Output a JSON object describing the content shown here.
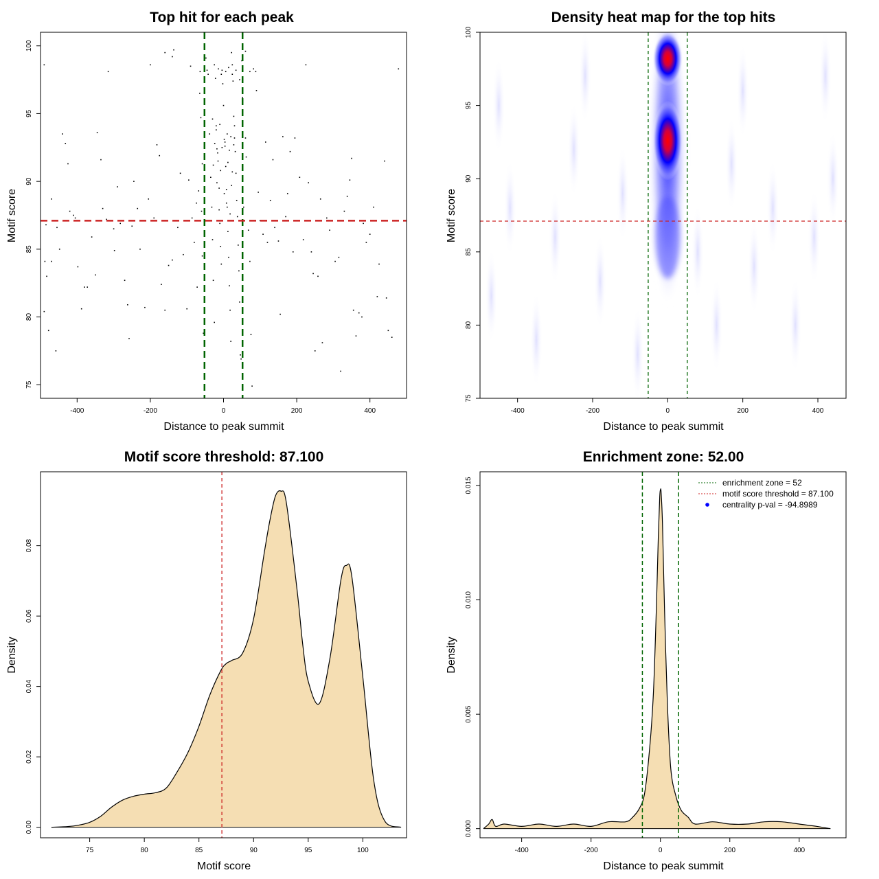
{
  "chart_data": [
    {
      "type": "scatter",
      "title": "Top hit for each peak",
      "xlabel": "Distance to peak summit",
      "ylabel": "Motif score",
      "xlim": [
        -500,
        500
      ],
      "ylim": [
        74,
        101
      ],
      "xticks": [
        -400,
        -200,
        0,
        200,
        400
      ],
      "yticks": [
        75,
        80,
        85,
        90,
        95,
        100
      ],
      "hline": {
        "y": 87.1,
        "color": "#cc2222"
      },
      "vlines": [
        {
          "x": -52,
          "color": "#006400"
        },
        {
          "x": 52,
          "color": "#006400"
        }
      ],
      "points": [
        [
          -490,
          98.6
        ],
        [
          -485,
          86.8
        ],
        [
          -488,
          84.1
        ],
        [
          -483,
          83
        ],
        [
          -490,
          80.4
        ],
        [
          -478,
          79
        ],
        [
          -458,
          77.5
        ],
        [
          -470,
          88.7
        ],
        [
          -448,
          85
        ],
        [
          -455,
          86.6
        ],
        [
          -440,
          93.5
        ],
        [
          -432,
          92.8
        ],
        [
          -425,
          91.3
        ],
        [
          -420,
          87.8
        ],
        [
          -410,
          87.5
        ],
        [
          -405,
          87.3
        ],
        [
          -398,
          83.7
        ],
        [
          -388,
          80.6
        ],
        [
          -380,
          82.2
        ],
        [
          -372,
          82.2
        ],
        [
          -360,
          85.9
        ],
        [
          -350,
          83.1
        ],
        [
          -345,
          93.6
        ],
        [
          -335,
          91.6
        ],
        [
          -320,
          87.2
        ],
        [
          -315,
          98.1
        ],
        [
          -300,
          86.5
        ],
        [
          -298,
          84.9
        ],
        [
          -290,
          89.6
        ],
        [
          -282,
          86.9
        ],
        [
          -270,
          82.7
        ],
        [
          -262,
          80.9
        ],
        [
          -258,
          78.4
        ],
        [
          -245,
          90
        ],
        [
          -235,
          88
        ],
        [
          -228,
          85
        ],
        [
          -215,
          80.7
        ],
        [
          -205,
          88.7
        ],
        [
          -200,
          98.6
        ],
        [
          -190,
          87.3
        ],
        [
          -182,
          92.7
        ],
        [
          -175,
          91.9
        ],
        [
          -170,
          82.4
        ],
        [
          -160,
          80.5
        ],
        [
          -150,
          83.8
        ],
        [
          -140,
          84.2
        ],
        [
          -136,
          99.7
        ],
        [
          -125,
          86.6
        ],
        [
          -118,
          90.6
        ],
        [
          -110,
          84.6
        ],
        [
          -100,
          80.6
        ],
        [
          -95,
          90.1
        ],
        [
          -86,
          87.3
        ],
        [
          -80,
          85.5
        ],
        [
          -72,
          82.2
        ],
        [
          -65,
          96.5
        ],
        [
          -60,
          87.8
        ],
        [
          -58,
          84.5
        ],
        [
          -55,
          78.8
        ],
        [
          -140,
          99.2
        ],
        [
          -48,
          99.1
        ],
        [
          -45,
          98.2
        ],
        [
          -42,
          97.9
        ],
        [
          -38,
          93.5
        ],
        [
          -35,
          90.3
        ],
        [
          -32,
          88.1
        ],
        [
          -30,
          85.7
        ],
        [
          -28,
          82.7
        ],
        [
          -25,
          79.6
        ],
        [
          -20,
          94.1
        ],
        [
          -18,
          92.4
        ],
        [
          -15,
          91.5
        ],
        [
          -12,
          89.5
        ],
        [
          -10,
          86.9
        ],
        [
          -8,
          85.2
        ],
        [
          -6,
          83.9
        ],
        [
          -4,
          98.2
        ],
        [
          -2,
          97.2
        ],
        [
          0,
          95.6
        ],
        [
          2,
          93.1
        ],
        [
          4,
          92.6
        ],
        [
          6,
          91.1
        ],
        [
          8,
          89.4
        ],
        [
          10,
          88.1
        ],
        [
          12,
          86.3
        ],
        [
          14,
          84.4
        ],
        [
          16,
          82.3
        ],
        [
          18,
          80.5
        ],
        [
          20,
          78.2
        ],
        [
          22,
          99.5
        ],
        [
          24,
          98.6
        ],
        [
          26,
          97.4
        ],
        [
          28,
          94.8
        ],
        [
          30,
          93.2
        ],
        [
          32,
          92.2
        ],
        [
          34,
          90.6
        ],
        [
          36,
          88.6
        ],
        [
          38,
          87.4
        ],
        [
          40,
          85.3
        ],
        [
          42,
          83.4
        ],
        [
          44,
          81.1
        ],
        [
          46,
          77.2
        ],
        [
          48,
          76.9
        ],
        [
          50,
          98.9
        ],
        [
          52,
          96.2
        ],
        [
          -25,
          98.6
        ],
        [
          -22,
          97.6
        ],
        [
          -14,
          98.3
        ],
        [
          -6,
          97.9
        ],
        [
          6,
          98.1
        ],
        [
          14,
          98.4
        ],
        [
          24,
          97.9
        ],
        [
          34,
          98.2
        ],
        [
          44,
          97.5
        ],
        [
          -30,
          94.6
        ],
        [
          -20,
          93.8
        ],
        [
          -10,
          94.2
        ],
        [
          10,
          93.5
        ],
        [
          20,
          93.3
        ],
        [
          30,
          94.1
        ],
        [
          -24,
          92.8
        ],
        [
          -16,
          92.1
        ],
        [
          -4,
          92.5
        ],
        [
          4,
          92.9
        ],
        [
          16,
          92.3
        ],
        [
          28,
          92.7
        ],
        [
          -28,
          91.2
        ],
        [
          -8,
          90.8
        ],
        [
          12,
          91.4
        ],
        [
          24,
          90.7
        ],
        [
          -18,
          89.9
        ],
        [
          2,
          89.1
        ],
        [
          22,
          89.7
        ],
        [
          -12,
          87.9
        ],
        [
          8,
          88.4
        ],
        [
          18,
          87.6
        ],
        [
          55,
          88.1
        ],
        [
          60,
          93.2
        ],
        [
          62,
          91.8
        ],
        [
          68,
          86.4
        ],
        [
          72,
          84.1
        ],
        [
          75,
          78.7
        ],
        [
          78,
          74.9
        ],
        [
          82,
          98.3
        ],
        [
          88,
          98.1
        ],
        [
          95,
          89.2
        ],
        [
          100,
          87.1
        ],
        [
          108,
          86.1
        ],
        [
          115,
          92.9
        ],
        [
          120,
          85.5
        ],
        [
          128,
          88.6
        ],
        [
          135,
          91.6
        ],
        [
          140,
          86.6
        ],
        [
          150,
          85.6
        ],
        [
          155,
          80.2
        ],
        [
          162,
          93.3
        ],
        [
          170,
          87.4
        ],
        [
          175,
          89.1
        ],
        [
          182,
          92.2
        ],
        [
          190,
          84.8
        ],
        [
          195,
          93.2
        ],
        [
          200,
          87.1
        ],
        [
          208,
          90.3
        ],
        [
          218,
          85.7
        ],
        [
          225,
          98.6
        ],
        [
          232,
          89.9
        ],
        [
          240,
          84.8
        ],
        [
          245,
          83.2
        ],
        [
          250,
          77.5
        ],
        [
          258,
          83
        ],
        [
          265,
          88.7
        ],
        [
          270,
          78.1
        ],
        [
          282,
          87.3
        ],
        [
          290,
          86.4
        ],
        [
          305,
          84.1
        ],
        [
          315,
          84.4
        ],
        [
          320,
          76
        ],
        [
          330,
          87.8
        ],
        [
          338,
          88.9
        ],
        [
          345,
          90.1
        ],
        [
          350,
          91.7
        ],
        [
          355,
          80.5
        ],
        [
          362,
          78.6
        ],
        [
          370,
          80.3
        ],
        [
          378,
          80
        ],
        [
          382,
          86.9
        ],
        [
          390,
          85.5
        ],
        [
          400,
          86.1
        ],
        [
          410,
          88.1
        ],
        [
          420,
          81.5
        ],
        [
          425,
          83.9
        ],
        [
          440,
          91.5
        ],
        [
          445,
          81.4
        ],
        [
          450,
          79
        ],
        [
          460,
          78.5
        ],
        [
          478,
          98.3
        ],
        [
          -470,
          84.1
        ],
        [
          -330,
          88
        ],
        [
          -250,
          86.7
        ],
        [
          -160,
          99.5
        ],
        [
          -90,
          98.5
        ],
        [
          -64,
          98.1
        ],
        [
          60,
          99.6
        ],
        [
          72,
          98.1
        ],
        [
          90,
          96.7
        ],
        [
          -74,
          88.4
        ],
        [
          -68,
          89.3
        ],
        [
          -52,
          86.1
        ],
        [
          -58,
          91.3
        ],
        [
          -62,
          94.7
        ]
      ]
    },
    {
      "type": "heatmap",
      "title": "Density heat map for the top hits",
      "xlabel": "Distance to peak summit",
      "ylabel": "Motif score",
      "xlim": [
        -500,
        475
      ],
      "ylim": [
        75,
        100
      ],
      "xticks": [
        -400,
        -200,
        0,
        200,
        400
      ],
      "yticks": [
        75,
        80,
        85,
        90,
        95,
        100
      ],
      "hline": {
        "y": 87.1,
        "color": "#cc2222"
      },
      "vlines": [
        {
          "x": -52,
          "color": "#006400"
        },
        {
          "x": 52,
          "color": "#006400"
        }
      ],
      "hotspots": [
        {
          "x": 0,
          "y": 92.6,
          "intensity": "high"
        },
        {
          "x": 0,
          "y": 98.2,
          "intensity": "high"
        }
      ],
      "colors": {
        "low": "#ffffff",
        "mid": "#0000ff",
        "high": "#ff0000"
      }
    },
    {
      "type": "area",
      "title": "Motif score threshold: 87.100",
      "xlabel": "Motif score",
      "ylabel": "Density",
      "xlim": [
        70.5,
        104
      ],
      "ylim": [
        -0.003,
        0.101
      ],
      "xticks": [
        75,
        80,
        85,
        90,
        95,
        100
      ],
      "yticks": [
        "0.00",
        "0.02",
        "0.04",
        "0.06",
        "0.08"
      ],
      "fill": "#f5deb3",
      "vline": {
        "x": 87.1,
        "color": "#cc2222"
      },
      "x": [
        71.5,
        73,
        74,
        75,
        76,
        77,
        78,
        79,
        80,
        81,
        82,
        83,
        84,
        85,
        86,
        87,
        87.5,
        88,
        89,
        90,
        91,
        91.5,
        92,
        92.5,
        93,
        94,
        94.5,
        95,
        96,
        97,
        98,
        98.5,
        99,
        100,
        101,
        102,
        103.5
      ],
      "y": [
        0,
        0.0002,
        0.0006,
        0.0014,
        0.0031,
        0.0057,
        0.0077,
        0.0088,
        0.0094,
        0.0098,
        0.0111,
        0.0157,
        0.0213,
        0.0287,
        0.0376,
        0.0445,
        0.0465,
        0.0474,
        0.0495,
        0.0592,
        0.0784,
        0.0873,
        0.0941,
        0.0955,
        0.0922,
        0.0669,
        0.0519,
        0.0415,
        0.0351,
        0.0482,
        0.0704,
        0.0744,
        0.0711,
        0.0427,
        0.0133,
        0.0018,
        0
      ]
    },
    {
      "type": "area",
      "title": "Enrichment zone: 52.00",
      "xlabel": "Distance to peak summit",
      "ylabel": "Density",
      "xlim": [
        -520,
        535
      ],
      "ylim": [
        -0.0004,
        0.0156
      ],
      "xticks": [
        -400,
        -200,
        0,
        200,
        400
      ],
      "yticks": [
        "0.000",
        "0.005",
        "0.010",
        "0.015"
      ],
      "fill": "#f5deb3",
      "vlines": [
        {
          "x": -52,
          "color": "#006400"
        },
        {
          "x": 52,
          "color": "#006400"
        }
      ],
      "legend": {
        "position": "top-right",
        "entries": [
          {
            "label": "enrichment zone = 52",
            "color": "#006400",
            "style": "dotted"
          },
          {
            "label": "motif score threshold = 87.100",
            "color": "#cc2222",
            "style": "dotted"
          },
          {
            "label": "centrality p-val = -94.8989",
            "color": "#0000ff",
            "style": "dot"
          }
        ]
      },
      "x": [
        -510,
        -495,
        -485,
        -475,
        -450,
        -400,
        -350,
        -300,
        -250,
        -200,
        -150,
        -100,
        -80,
        -60,
        -45,
        -30,
        -20,
        -12,
        -6,
        -2,
        0,
        2,
        6,
        12,
        20,
        30,
        45,
        60,
        80,
        100,
        150,
        200,
        250,
        300,
        350,
        400,
        450,
        490
      ],
      "y": [
        0,
        0.0002,
        0.0004,
        0.0001,
        0.0002,
        0.0001,
        0.0002,
        0.0001,
        0.0002,
        0.0001,
        0.0003,
        0.0003,
        0.0005,
        0.0009,
        0.0016,
        0.0037,
        0.006,
        0.0095,
        0.0128,
        0.0145,
        0.0148,
        0.0147,
        0.0133,
        0.0095,
        0.0055,
        0.0026,
        0.0014,
        0.0008,
        0.0005,
        0.0002,
        0.0003,
        0.0002,
        0.0002,
        0.0003,
        0.0003,
        0.0002,
        0.0001,
        0
      ]
    }
  ]
}
